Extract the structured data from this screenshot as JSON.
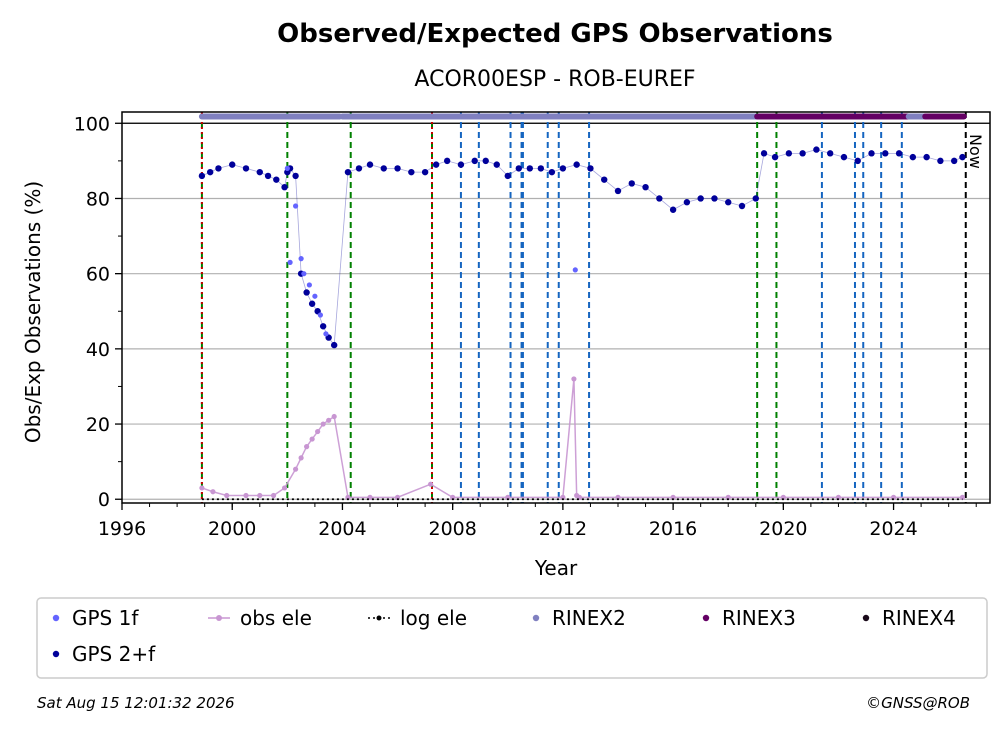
{
  "chart_data": {
    "type": "scatter",
    "title": "Observed/Expected GPS Observations",
    "subtitle": "ACOR00ESP - ROB-EUREF",
    "xlabel": "Year",
    "ylabel": "Obs/Exp Observations (%)",
    "xlim": [
      1996,
      2027.5
    ],
    "ylim": [
      -1,
      103
    ],
    "x_ticks": [
      "1996",
      "2000",
      "2004",
      "2008",
      "2012",
      "2016",
      "2020",
      "2024"
    ],
    "y_ticks": [
      "0",
      "20",
      "40",
      "60",
      "80",
      "100"
    ],
    "grid": "horizontal",
    "now_label": "Now",
    "now_year": 2026.62,
    "legend": [
      {
        "label": "GPS 1f",
        "color": "#6464ff",
        "marker": "dot"
      },
      {
        "label": "obs ele",
        "color": "#c896d2",
        "marker": "line-dot"
      },
      {
        "label": "log ele",
        "color": "#000000",
        "marker": "dotted-line"
      },
      {
        "label": "RINEX2",
        "color": "#8080c0",
        "marker": "dot"
      },
      {
        "label": "RINEX3",
        "color": "#640064",
        "marker": "dot"
      },
      {
        "label": "RINEX4",
        "color": "#1a0a1a",
        "marker": "dot"
      },
      {
        "label": "GPS 2+f",
        "color": "#00009a",
        "marker": "dot"
      }
    ],
    "rinex_bars": [
      {
        "format": "RINEX2",
        "start": 1998.9,
        "end": 2003.0
      },
      {
        "format": "RINEX2",
        "start": 2003.0,
        "end": 2003.9
      },
      {
        "format": "RINEX2",
        "start": 2004.0,
        "end": 2019.05
      },
      {
        "format": "RINEX3",
        "start": 2019.05,
        "end": 2024.55
      },
      {
        "format": "RINEX2",
        "start": 2024.55,
        "end": 2025.15
      },
      {
        "format": "RINEX3",
        "start": 2025.15,
        "end": 2026.55
      }
    ],
    "event_lines": {
      "red": [
        1998.9,
        2007.25
      ],
      "green": [
        1998.9,
        2002.0,
        2004.3,
        2007.25,
        2019.05,
        2019.75
      ],
      "blue": [
        2008.3,
        2008.95,
        2010.1,
        2010.5,
        2010.55,
        2011.45,
        2011.85,
        2012.95,
        2021.4,
        2022.6,
        2022.9,
        2023.55,
        2024.3
      ]
    },
    "series": [
      {
        "name": "GPS 2+f",
        "color": "#00009a",
        "x": [
          1998.9,
          1999.2,
          1999.5,
          2000.0,
          2000.5,
          2001.0,
          2001.3,
          2001.6,
          2001.9,
          2002.0,
          2002.1,
          2002.3,
          2002.5,
          2002.7,
          2002.9,
          2003.1,
          2003.3,
          2003.5,
          2003.7,
          2004.2,
          2004.6,
          2005.0,
          2005.5,
          2006.0,
          2006.5,
          2007.0,
          2007.4,
          2007.8,
          2008.3,
          2008.8,
          2009.2,
          2009.6,
          2010.0,
          2010.4,
          2010.8,
          2011.2,
          2011.6,
          2012.0,
          2012.5,
          2013.0,
          2013.5,
          2014.0,
          2014.5,
          2015.0,
          2015.5,
          2016.0,
          2016.5,
          2017.0,
          2017.5,
          2018.0,
          2018.5,
          2019.0,
          2019.3,
          2019.7,
          2020.2,
          2020.7,
          2021.2,
          2021.7,
          2022.2,
          2022.7,
          2023.2,
          2023.7,
          2024.2,
          2024.7,
          2025.2,
          2025.7,
          2026.2,
          2026.5
        ],
        "y": [
          86,
          87,
          88,
          89,
          88,
          87,
          86,
          85,
          83,
          87,
          88,
          86,
          60,
          55,
          52,
          50,
          46,
          43,
          41,
          87,
          88,
          89,
          88,
          88,
          87,
          87,
          89,
          90,
          89,
          90,
          90,
          89,
          86,
          88,
          88,
          88,
          87,
          88,
          89,
          88,
          85,
          82,
          84,
          83,
          80,
          77,
          79,
          80,
          80,
          79,
          78,
          80,
          92,
          91,
          92,
          92,
          93,
          92,
          91,
          90,
          92,
          92,
          92,
          91,
          91,
          90,
          90,
          91
        ]
      },
      {
        "name": "GPS 1f",
        "color": "#6464ff",
        "x": [
          2002.0,
          2002.1,
          2002.3,
          2002.5,
          2002.6,
          2002.8,
          2003.0,
          2003.2,
          2003.4,
          2012.45
        ],
        "y": [
          88,
          63,
          78,
          64,
          60,
          57,
          54,
          49,
          44,
          61
        ]
      },
      {
        "name": "obs ele",
        "color": "#c896d2",
        "x": [
          1998.9,
          1999.3,
          1999.8,
          2000.5,
          2001.0,
          2001.5,
          2001.9,
          2002.3,
          2002.5,
          2002.7,
          2002.9,
          2003.1,
          2003.3,
          2003.5,
          2003.7,
          2004.2,
          2005.0,
          2006.0,
          2007.2,
          2008.0,
          2010.0,
          2012.0,
          2012.4,
          2012.5,
          2012.6,
          2014.0,
          2016.0,
          2018.0,
          2020.0,
          2022.0,
          2024.0,
          2026.5
        ],
        "y": [
          3,
          2,
          1,
          1,
          1,
          1,
          3,
          8,
          11,
          14,
          16,
          18,
          20,
          21,
          22,
          0.5,
          0.5,
          0.5,
          4,
          0.5,
          0.5,
          0.5,
          32,
          1,
          0.5,
          0.5,
          0.5,
          0.5,
          0.5,
          0.5,
          0.5,
          0.5
        ]
      },
      {
        "name": "log ele",
        "color": "#000000",
        "x": [
          1998.9,
          2026.5
        ],
        "y": [
          0,
          0
        ]
      }
    ]
  },
  "footer": {
    "timestamp": "Sat Aug 15 12:01:32 2026",
    "credit": "©GNSS@ROB"
  }
}
